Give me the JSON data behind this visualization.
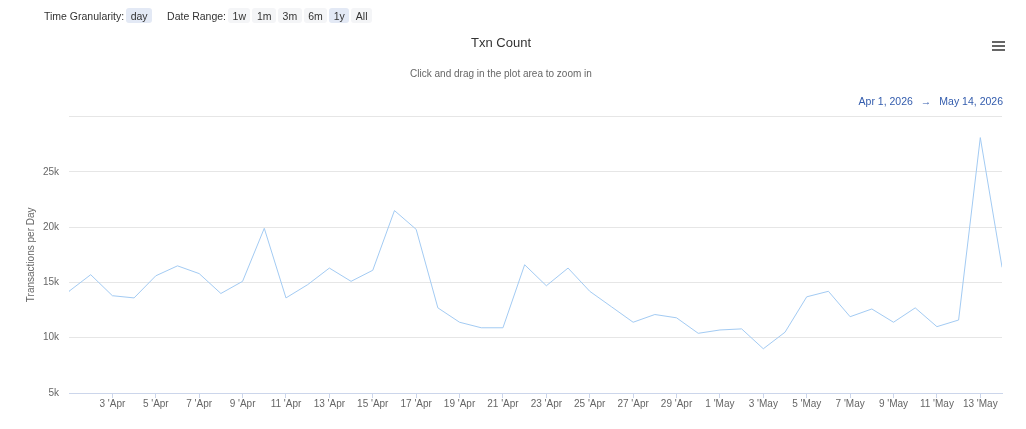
{
  "chart_data": {
    "type": "line",
    "title": "Txn Count",
    "subtitle": "Click and drag in the plot area to zoom in",
    "ylabel": "Transactions per Day",
    "annotations": [
      "Time Granularity:",
      "day",
      "Date Range:",
      "1w",
      "1m",
      "3m",
      "6m",
      "1y",
      "All",
      "Apr 1, 2026",
      "→",
      "May 14, 2026"
    ],
    "x": [
      "2026-04-01",
      "2026-04-02",
      "2026-04-03",
      "2026-04-04",
      "2026-04-05",
      "2026-04-06",
      "2026-04-07",
      "2026-04-08",
      "2026-04-09",
      "2026-04-10",
      "2026-04-11",
      "2026-04-12",
      "2026-04-13",
      "2026-04-14",
      "2026-04-15",
      "2026-04-16",
      "2026-04-17",
      "2026-04-18",
      "2026-04-19",
      "2026-04-20",
      "2026-04-21",
      "2026-04-22",
      "2026-04-23",
      "2026-04-24",
      "2026-04-25",
      "2026-04-26",
      "2026-04-27",
      "2026-04-28",
      "2026-04-29",
      "2026-04-30",
      "2026-05-01",
      "2026-05-02",
      "2026-05-03",
      "2026-05-04",
      "2026-05-05",
      "2026-05-06",
      "2026-05-07",
      "2026-05-08",
      "2026-05-09",
      "2026-05-10",
      "2026-05-11",
      "2026-05-12",
      "2026-05-13",
      "2026-05-14"
    ],
    "values": [
      14200,
      15700,
      13800,
      13600,
      15600,
      16500,
      15800,
      14000,
      15100,
      19900,
      13600,
      14800,
      16300,
      15100,
      16100,
      21500,
      19800,
      12700,
      11400,
      10900,
      10900,
      16600,
      14700,
      16300,
      14200,
      12800,
      11400,
      12100,
      11800,
      10400,
      10700,
      10800,
      9000,
      10500,
      13700,
      14200,
      11900,
      12600,
      11400,
      12700,
      11000,
      11600,
      28100,
      16400
    ],
    "color": "#a3cbf3",
    "xlim": [
      "2026-04-01",
      "2026-05-14"
    ],
    "xticks": [
      {
        "value": "2026-04-03",
        "label": "3 'Apr"
      },
      {
        "value": "2026-04-05",
        "label": "5 'Apr"
      },
      {
        "value": "2026-04-07",
        "label": "7 'Apr"
      },
      {
        "value": "2026-04-09",
        "label": "9 'Apr"
      },
      {
        "value": "2026-04-11",
        "label": "11 'Apr"
      },
      {
        "value": "2026-04-13",
        "label": "13 'Apr"
      },
      {
        "value": "2026-04-15",
        "label": "15 'Apr"
      },
      {
        "value": "2026-04-17",
        "label": "17 'Apr"
      },
      {
        "value": "2026-04-19",
        "label": "19 'Apr"
      },
      {
        "value": "2026-04-21",
        "label": "21 'Apr"
      },
      {
        "value": "2026-04-23",
        "label": "23 'Apr"
      },
      {
        "value": "2026-04-25",
        "label": "25 'Apr"
      },
      {
        "value": "2026-04-27",
        "label": "27 'Apr"
      },
      {
        "value": "2026-04-29",
        "label": "29 'Apr"
      },
      {
        "value": "2026-05-01",
        "label": "1 'May"
      },
      {
        "value": "2026-05-03",
        "label": "3 'May"
      },
      {
        "value": "2026-05-05",
        "label": "5 'May"
      },
      {
        "value": "2026-05-07",
        "label": "7 'May"
      },
      {
        "value": "2026-05-09",
        "label": "9 'May"
      },
      {
        "value": "2026-05-11",
        "label": "11 'May"
      },
      {
        "value": "2026-05-13",
        "label": "13 'May"
      }
    ],
    "ylim": [
      5000,
      30000
    ],
    "yticks": [
      {
        "value": 5000,
        "label": "5k"
      },
      {
        "value": 10000,
        "label": "10k"
      },
      {
        "value": 15000,
        "label": "15k"
      },
      {
        "value": 20000,
        "label": "20k"
      },
      {
        "value": 25000,
        "label": "25k"
      },
      {
        "value": 30000,
        "label": null
      }
    ],
    "grid": "y"
  }
}
